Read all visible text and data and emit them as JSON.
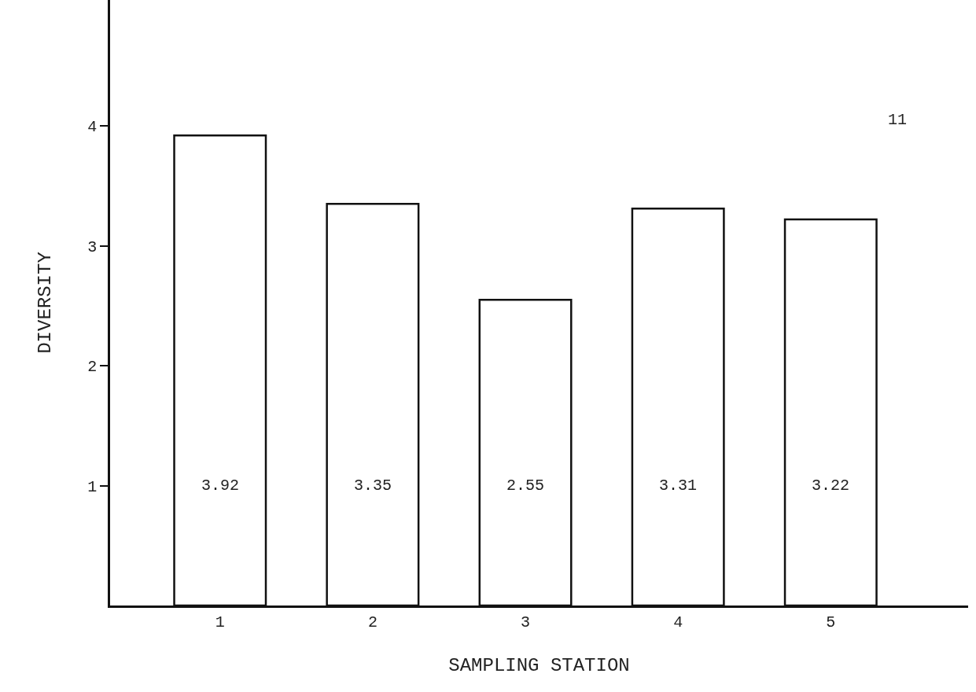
{
  "chart_data": {
    "type": "bar",
    "xlabel": "SAMPLING STATION",
    "ylabel": "DIVERSITY",
    "categories": [
      "1",
      "2",
      "3",
      "4",
      "5"
    ],
    "values": [
      3.92,
      3.35,
      2.55,
      3.31,
      3.22
    ],
    "color": "#ffffff",
    "data_labels": true,
    "ylim": [
      0,
      5.05
    ],
    "yticks": [
      1,
      2,
      3,
      4
    ],
    "annotations": [
      "11"
    ]
  }
}
